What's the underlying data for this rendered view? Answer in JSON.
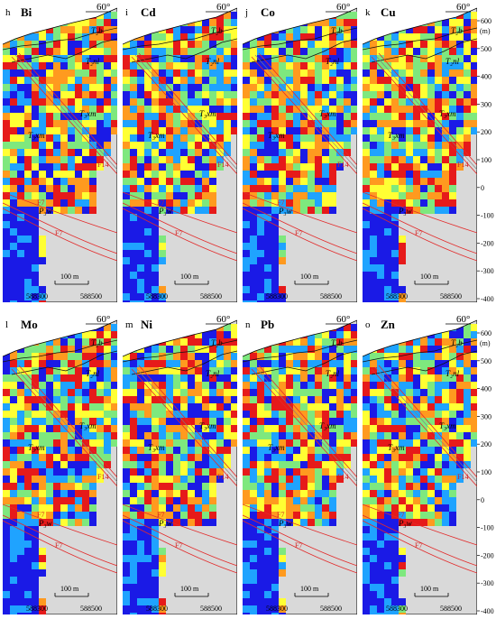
{
  "panels": [
    {
      "letter": "h",
      "element": "Bi"
    },
    {
      "letter": "i",
      "element": "Cd"
    },
    {
      "letter": "j",
      "element": "Co"
    },
    {
      "letter": "k",
      "element": "Cu"
    },
    {
      "letter": "l",
      "element": "Mo"
    },
    {
      "letter": "m",
      "element": "Ni"
    },
    {
      "letter": "n",
      "element": "Pb"
    },
    {
      "letter": "o",
      "element": "Zn"
    }
  ],
  "annotations": {
    "dip": "60°",
    "strata_top": "T₂b",
    "strata_nl": "T₂nl",
    "strata_xm": "T₃xm",
    "strata_w": "P₃w",
    "fault_f14": "F14",
    "fault_f7": "F7",
    "scale_bar": "100 m",
    "x_tick_left": "588300",
    "x_tick_right": "588500"
  },
  "elevation_axis": {
    "unit": "(m)",
    "ticks": [
      "600",
      "500",
      "400",
      "300",
      "200",
      "100",
      "0",
      "-100",
      "-200",
      "-300",
      "-400"
    ]
  },
  "colors": {
    "low": "#1a1ae6",
    "mid_low": "#1fa3ff",
    "mid": "#7ee87e",
    "mid_high": "#ffff33",
    "high": "#ff9a1f",
    "very_high": "#e61a1a",
    "background": "#d9d9d9",
    "fault": "#e22b2b"
  }
}
